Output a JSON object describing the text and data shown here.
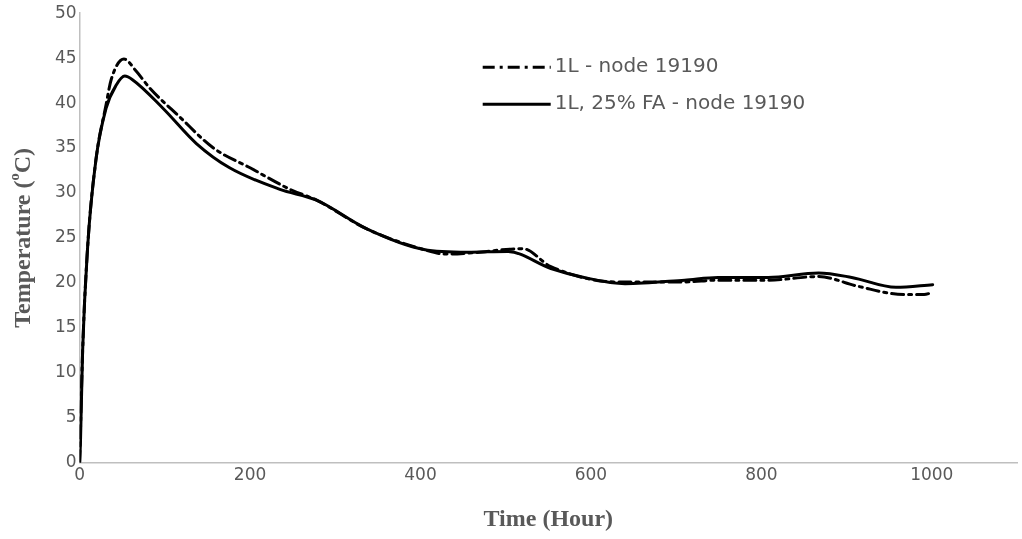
{
  "chart_data": {
    "type": "line",
    "xlabel": "Time (Hour)",
    "ylabel": "Temperature ($^{o}$C)",
    "xlim": [
      0,
      1100
    ],
    "xticks": [
      0,
      200,
      400,
      600,
      800,
      1000
    ],
    "ylim": [
      0,
      50
    ],
    "yticks": [
      0,
      5,
      10,
      15,
      20,
      25,
      30,
      35,
      40,
      45,
      50
    ],
    "grid": false,
    "legend": "top right",
    "marker": "none",
    "series": [
      {
        "name": "1L - node 19190",
        "color": "#000000",
        "line_style": "dashed",
        "x": [
          0,
          3.5,
          9.4,
          19,
          31,
          37,
          52,
          66,
          82,
          117,
          157,
          200,
          247,
          278,
          337,
          404,
          430,
          455,
          520,
          553,
          631,
          710,
          749,
          808,
          867,
          914,
          967,
          991,
          1000
        ],
        "values": [
          0,
          12.4,
          24,
          33.6,
          39.8,
          42.6,
          44.9,
          43.6,
          41.7,
          38.5,
          35,
          32.8,
          30.4,
          29.2,
          26,
          23.7,
          23.2,
          23.3,
          23.8,
          21.8,
          20.1,
          20.1,
          20.3,
          20.3,
          20.7,
          19.6,
          18.7,
          18.7,
          18.9
        ]
      },
      {
        "name": "1L, 25% FA - node 19190",
        "color": "#000000",
        "line_style": "solid",
        "x": [
          0,
          1,
          3.5,
          9.4,
          19,
          31,
          43,
          53,
          62,
          98,
          137,
          176,
          235,
          278,
          337,
          404,
          455,
          502,
          553,
          592,
          640,
          710,
          749,
          808,
          867,
          906,
          958,
          1001
        ],
        "values": [
          0,
          2.3,
          12.4,
          24,
          33.6,
          39.4,
          42,
          43,
          42.6,
          39.4,
          35.5,
          32.8,
          30.4,
          29.2,
          26,
          23.7,
          23.4,
          23.5,
          21.6,
          20.6,
          19.9,
          20.3,
          20.6,
          20.6,
          21.1,
          20.6,
          19.5,
          19.8
        ]
      }
    ]
  }
}
